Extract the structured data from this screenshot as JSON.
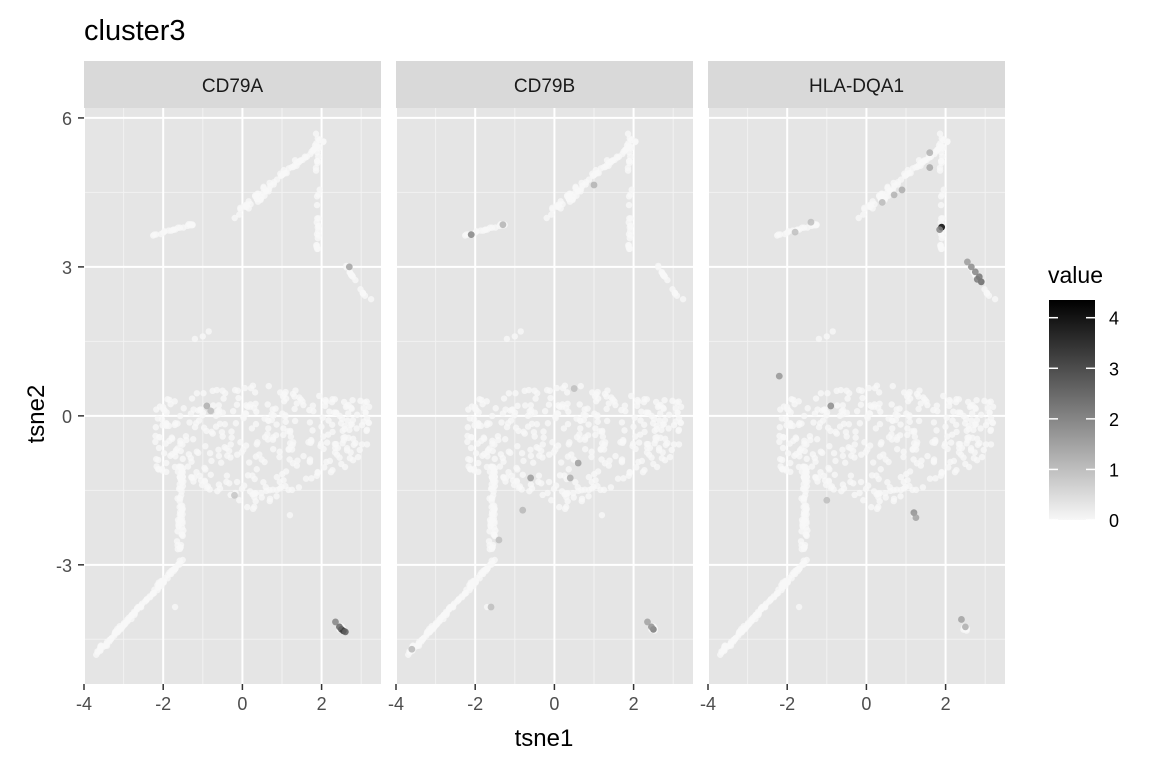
{
  "chart_data": {
    "type": "scatter",
    "title": "cluster3",
    "xlabel": "tsne1",
    "ylabel": "tsne2",
    "facets": [
      "CD79A",
      "CD79B",
      "HLA-DQA1"
    ],
    "xlim": [
      -4,
      3.5
    ],
    "ylim": [
      -5.4,
      6.2
    ],
    "x_ticks": [
      -4,
      -2,
      0,
      2
    ],
    "y_ticks": [
      -3,
      0,
      3,
      6
    ],
    "grid": true,
    "legend": {
      "title": "value",
      "placement": "right",
      "ticks": [
        0,
        1,
        2,
        3,
        4
      ],
      "range": [
        0,
        4.35
      ],
      "low_color": "#f7f7f7",
      "high_color": "#000000"
    },
    "colors": {
      "panel_background": "#e5e5e5",
      "gridline": "#ffffff",
      "strip_background": "#d9d9d9"
    },
    "highlighted_points": {
      "CD79A": [
        {
          "x": 2.5,
          "y": -4.3,
          "value": 3.0
        },
        {
          "x": 2.55,
          "y": -4.33,
          "value": 3.3
        },
        {
          "x": 2.45,
          "y": -4.25,
          "value": 2.6
        },
        {
          "x": 2.35,
          "y": -4.15,
          "value": 2.0
        },
        {
          "x": 2.6,
          "y": -4.35,
          "value": 2.7
        },
        {
          "x": 2.7,
          "y": 3.0,
          "value": 1.5
        },
        {
          "x": -0.9,
          "y": 0.2,
          "value": 1.3
        },
        {
          "x": -0.8,
          "y": 0.1,
          "value": 1.0
        },
        {
          "x": -0.2,
          "y": -1.6,
          "value": 0.9
        }
      ],
      "CD79B": [
        {
          "x": 2.5,
          "y": -4.3,
          "value": 2.2
        },
        {
          "x": 2.45,
          "y": -4.25,
          "value": 1.8
        },
        {
          "x": 2.35,
          "y": -4.15,
          "value": 1.5
        },
        {
          "x": -2.1,
          "y": 3.65,
          "value": 2.0
        },
        {
          "x": -1.3,
          "y": 3.85,
          "value": 1.2
        },
        {
          "x": 1.0,
          "y": 4.65,
          "value": 1.2
        },
        {
          "x": 0.6,
          "y": -0.95,
          "value": 1.6
        },
        {
          "x": 0.4,
          "y": -1.25,
          "value": 1.3
        },
        {
          "x": -0.6,
          "y": -1.25,
          "value": 1.6
        },
        {
          "x": -0.8,
          "y": -1.9,
          "value": 1.1
        },
        {
          "x": -1.4,
          "y": -2.5,
          "value": 1.0
        },
        {
          "x": -3.6,
          "y": -4.7,
          "value": 1.1
        },
        {
          "x": -1.6,
          "y": -3.85,
          "value": 1.0
        },
        {
          "x": 0.5,
          "y": 0.55,
          "value": 1.0
        }
      ],
      "HLA-DQA1": [
        {
          "x": 1.9,
          "y": 3.8,
          "value": 4.3
        },
        {
          "x": 1.85,
          "y": 3.75,
          "value": 2.0
        },
        {
          "x": 2.9,
          "y": 2.7,
          "value": 2.5
        },
        {
          "x": 2.85,
          "y": 2.8,
          "value": 2.3
        },
        {
          "x": 2.75,
          "y": 2.9,
          "value": 2.0
        },
        {
          "x": 2.65,
          "y": 3.0,
          "value": 1.9
        },
        {
          "x": 2.55,
          "y": 3.1,
          "value": 1.6
        },
        {
          "x": 2.8,
          "y": 2.75,
          "value": 2.2
        },
        {
          "x": 1.2,
          "y": -1.95,
          "value": 1.8
        },
        {
          "x": 1.25,
          "y": -2.05,
          "value": 1.5
        },
        {
          "x": -2.2,
          "y": 0.8,
          "value": 1.7
        },
        {
          "x": -0.9,
          "y": 0.2,
          "value": 1.9
        },
        {
          "x": 2.4,
          "y": -4.1,
          "value": 1.5
        },
        {
          "x": 2.5,
          "y": -4.25,
          "value": 1.3
        },
        {
          "x": 1.6,
          "y": 5.0,
          "value": 1.4
        },
        {
          "x": 0.9,
          "y": 4.55,
          "value": 1.3
        },
        {
          "x": 0.7,
          "y": 4.45,
          "value": 1.2
        },
        {
          "x": 0.4,
          "y": 4.3,
          "value": 1.1
        },
        {
          "x": -1.4,
          "y": 3.9,
          "value": 1.0
        },
        {
          "x": 1.6,
          "y": 5.3,
          "value": 1.2
        },
        {
          "x": -1.0,
          "y": -1.7,
          "value": 1.0
        },
        {
          "x": -1.8,
          "y": 3.7,
          "value": 1.0
        }
      ]
    }
  }
}
